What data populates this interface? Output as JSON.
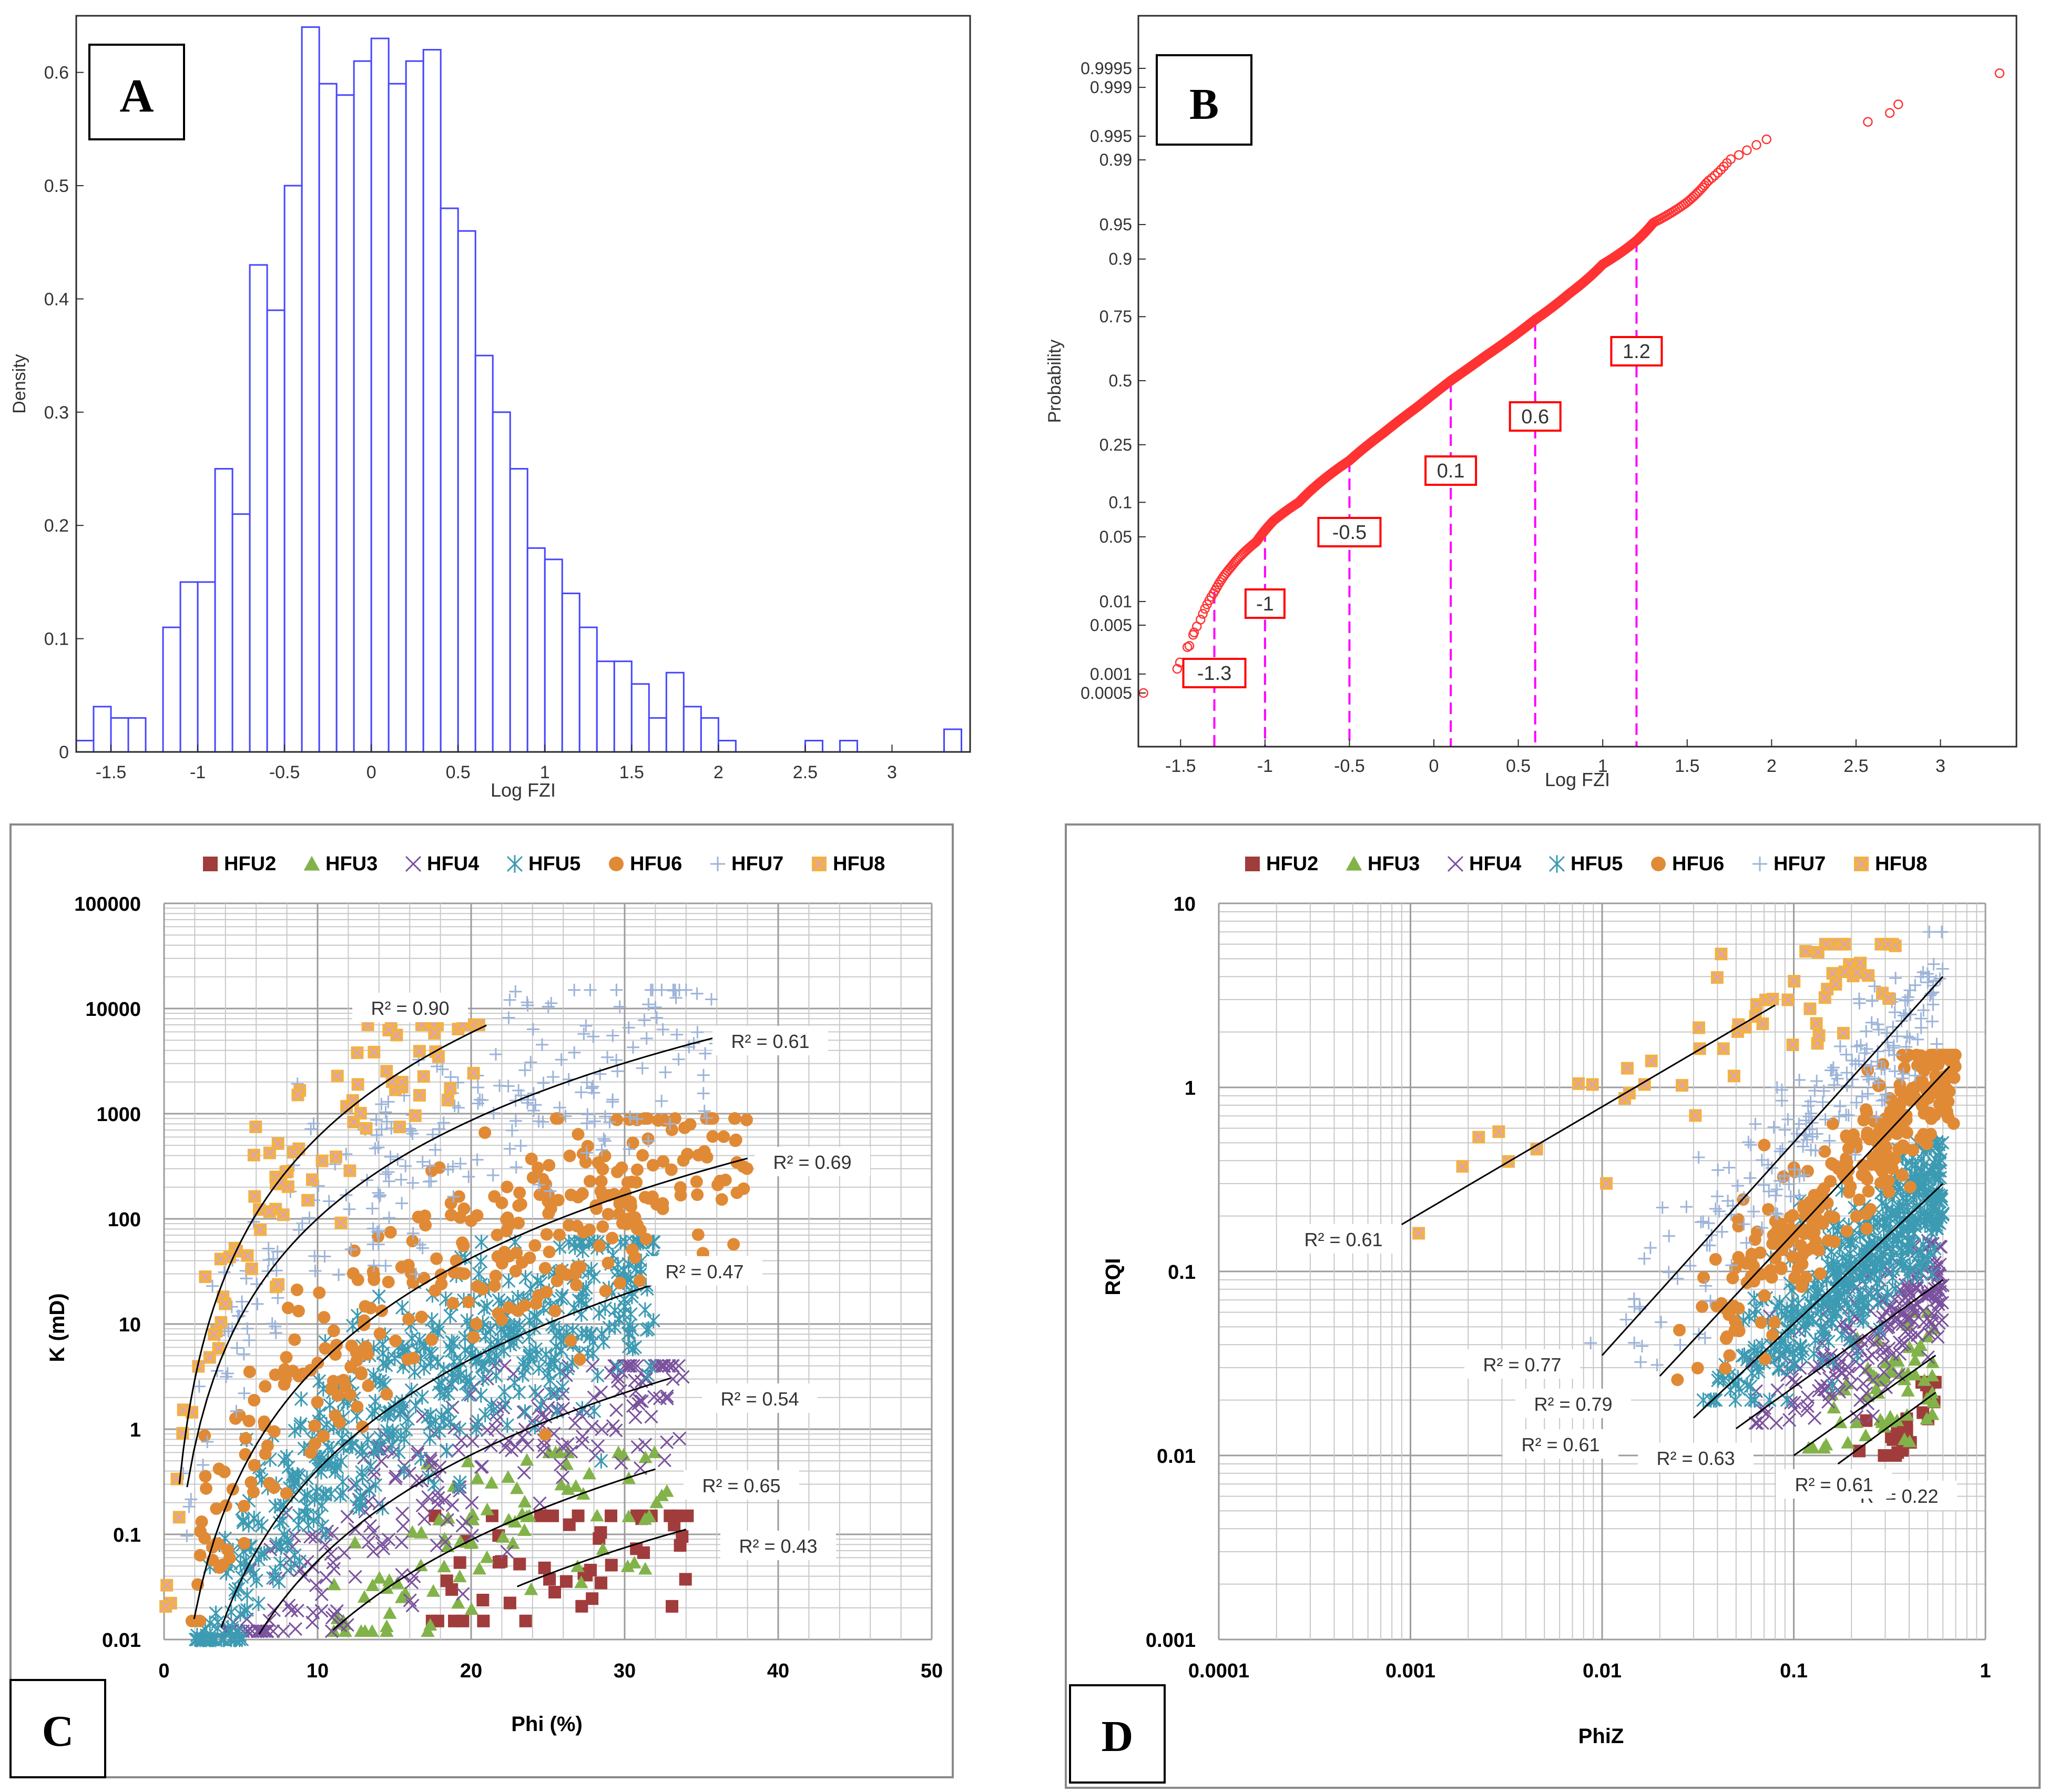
{
  "chart_data": [
    {
      "id": "A",
      "type": "bar",
      "subtype": "histogram",
      "panel_label": "A",
      "xlabel": "Log FZI",
      "ylabel": "Density",
      "xlim": [
        -1.7,
        3.45
      ],
      "ylim": [
        0,
        0.65
      ],
      "xticks": [
        "-1.5",
        "-1",
        "-0.5",
        "0",
        "0.5",
        "1",
        "1.5",
        "2",
        "2.5",
        "3"
      ],
      "yticks": [
        "0",
        "0.1",
        "0.2",
        "0.3",
        "0.4",
        "0.5",
        "0.6"
      ],
      "bin_width": 0.1,
      "bin_starts": [
        -1.7,
        -1.6,
        -1.5,
        -1.4,
        -1.3,
        -1.2,
        -1.1,
        -1.0,
        -0.9,
        -0.8,
        -0.7,
        -0.6,
        -0.5,
        -0.4,
        -0.3,
        -0.2,
        -0.1,
        0.0,
        0.1,
        0.2,
        0.3,
        0.4,
        0.5,
        0.6,
        0.7,
        0.8,
        0.9,
        1.0,
        1.1,
        1.2,
        1.3,
        1.4,
        1.5,
        1.6,
        1.7,
        1.8,
        1.9,
        2.0,
        2.5,
        2.7,
        3.3
      ],
      "values": [
        0.01,
        0.04,
        0.03,
        0.03,
        0.0,
        0.11,
        0.15,
        0.15,
        0.25,
        0.21,
        0.43,
        0.39,
        0.5,
        0.64,
        0.59,
        0.58,
        0.61,
        0.63,
        0.59,
        0.61,
        0.62,
        0.48,
        0.46,
        0.35,
        0.3,
        0.25,
        0.18,
        0.17,
        0.14,
        0.11,
        0.08,
        0.08,
        0.06,
        0.03,
        0.07,
        0.04,
        0.03,
        0.01,
        0.01,
        0.01,
        0.02
      ],
      "color": "#4646ff"
    },
    {
      "id": "B",
      "type": "scatter",
      "subtype": "normal probability plot",
      "panel_label": "B",
      "xlabel": "Log FZI",
      "ylabel": "Probability",
      "xlim": [
        -1.75,
        3.45
      ],
      "xticks": [
        "-1.5",
        "-1",
        "-0.5",
        "0",
        "0.5",
        "1",
        "1.5",
        "2",
        "2.5",
        "3"
      ],
      "ytick_labels": [
        "0.0005",
        "0.001",
        "0.005",
        "0.01",
        "0.05",
        "0.1",
        "0.25",
        "0.5",
        "0.75",
        "0.9",
        "0.95",
        "0.99",
        "0.995",
        "0.999",
        "0.9995"
      ],
      "ytick_probs": [
        0.0005,
        0.001,
        0.005,
        0.01,
        0.05,
        0.1,
        0.25,
        0.5,
        0.75,
        0.9,
        0.95,
        0.99,
        0.995,
        0.999,
        0.9995
      ],
      "curve_points": [
        [
          -1.72,
          0.0005
        ],
        [
          -1.52,
          0.0012
        ],
        [
          -1.45,
          0.0025
        ],
        [
          -1.38,
          0.006
        ],
        [
          -1.3,
          0.013
        ],
        [
          -1.2,
          0.025
        ],
        [
          -1.05,
          0.045
        ],
        [
          -0.95,
          0.07
        ],
        [
          -0.8,
          0.1
        ],
        [
          -0.5,
          0.2
        ],
        [
          -0.3,
          0.29
        ],
        [
          -0.1,
          0.39
        ],
        [
          0.1,
          0.5
        ],
        [
          0.3,
          0.6
        ],
        [
          0.6,
          0.74
        ],
        [
          0.8,
          0.82
        ],
        [
          1.0,
          0.89
        ],
        [
          1.2,
          0.93
        ],
        [
          1.3,
          0.952
        ],
        [
          1.5,
          0.97
        ],
        [
          1.62,
          0.982
        ],
        [
          1.75,
          0.99
        ],
        [
          1.88,
          0.993
        ],
        [
          1.97,
          0.9945
        ],
        [
          2.57,
          0.9968
        ],
        [
          2.7,
          0.9976
        ],
        [
          2.75,
          0.9982
        ],
        [
          3.35,
          0.9994
        ]
      ],
      "cutoffs": [
        -1.3,
        -1.0,
        -0.5,
        0.1,
        0.6,
        1.2
      ],
      "cutoff_labels": [
        "-1.3",
        "-1",
        "-0.5",
        "0.1",
        "0.6",
        "1.2"
      ],
      "marker_color": "#ff3333",
      "cutoff_color": "#ff00ff"
    },
    {
      "id": "C",
      "type": "scatter",
      "panel_label": "C",
      "xlabel": "Phi (%)",
      "ylabel": "K (mD)",
      "xlim": [
        0,
        50
      ],
      "ylim": [
        0.01,
        100000
      ],
      "yscale": "log",
      "xticks": [
        "0",
        "10",
        "20",
        "30",
        "40",
        "50"
      ],
      "yticks": [
        "0.01",
        "0.1",
        "1",
        "10",
        "100",
        "1000",
        "10000",
        "100000"
      ],
      "legend": [
        "HFU2",
        "HFU3",
        "HFU4",
        "HFU5",
        "HFU6",
        "HFU7",
        "HFU8"
      ],
      "series": [
        {
          "name": "HFU2",
          "color": "#a13c3c",
          "marker": "square",
          "phi_range": [
            17,
            35
          ],
          "k_range": [
            0.015,
            0.15
          ],
          "fit": {
            "a": 1.4e-06,
            "b": 3.2,
            "x_range": [
              23,
              34
            ]
          },
          "r2": "R² = 0.43"
        },
        {
          "name": "HFU3",
          "color": "#82b34a",
          "marker": "triangle",
          "phi_range": [
            11,
            33
          ],
          "k_range": [
            0.012,
            0.6
          ],
          "fit": {
            "a": 4.5e-06,
            "b": 3.3,
            "x_range": [
              11,
              32
            ]
          },
          "r2": "R² = 0.65"
        },
        {
          "name": "HFU4",
          "color": "#7b529e",
          "marker": "x",
          "phi_range": [
            4,
            34
          ],
          "k_range": [
            0.012,
            4
          ],
          "fit": {
            "a": 2.5e-05,
            "b": 3.35,
            "x_range": [
              5.5,
              33
            ]
          },
          "r2": "R² = 0.54"
        },
        {
          "name": "HFU5",
          "color": "#3c9bb3",
          "marker": "star",
          "phi_range": [
            2,
            32
          ],
          "k_range": [
            0.01,
            60
          ],
          "fit": {
            "a": 0.00013,
            "b": 3.5,
            "x_range": [
              3,
              32
            ]
          },
          "r2": "R² = 0.47"
        },
        {
          "name": "HFU6",
          "color": "#e08a36",
          "marker": "circle",
          "phi_range": [
            1.5,
            38
          ],
          "k_range": [
            0.015,
            900
          ],
          "fit": {
            "a": 0.0016,
            "b": 3.4,
            "x_range": [
              1.5,
              38
            ]
          },
          "r2": "R² = 0.69"
        },
        {
          "name": "HFU7",
          "color": "#9db4d9",
          "marker": "plus",
          "phi_range": [
            1,
            36
          ],
          "k_range": [
            0.02,
            15000
          ],
          "fit": {
            "a": 0.08,
            "b": 3.1,
            "x_range": [
              1.5,
              36
            ]
          },
          "r2": "R² = 0.61"
        },
        {
          "name": "HFU8",
          "color": "#f4b33c",
          "marker": "square-x",
          "phi_range": [
            0,
            21
          ],
          "k_range": [
            0.01,
            7000
          ],
          "fit": {
            "a": 0.3,
            "b": 3.3,
            "x_range": [
              1,
              21
            ]
          },
          "r2": "R² = 0.90"
        }
      ]
    },
    {
      "id": "D",
      "type": "scatter",
      "panel_label": "D",
      "xlabel": "PhiZ",
      "ylabel": "RQI",
      "xlim": [
        0.0001,
        1
      ],
      "ylim": [
        0.001,
        10
      ],
      "xscale": "log",
      "yscale": "log",
      "xticks": [
        "0.0001",
        "0.001",
        "0.01",
        "0.1",
        "1"
      ],
      "yticks": [
        "0.001",
        "0.01",
        "0.1",
        "1",
        "10"
      ],
      "legend": [
        "HFU2",
        "HFU3",
        "HFU4",
        "HFU5",
        "HFU6",
        "HFU7",
        "HFU8"
      ],
      "series": [
        {
          "name": "HFU2",
          "color": "#a13c3c",
          "marker": "square",
          "phiz_range": [
            0.2,
            0.55
          ],
          "rqi_range": [
            0.01,
            0.025
          ],
          "fit": {
            "x_range": [
              0.17,
              0.55
            ],
            "y_range": [
              0.009,
              0.022
            ]
          },
          "r2": "R² = 0.22"
        },
        {
          "name": "HFU3",
          "color": "#82b34a",
          "marker": "triangle",
          "phiz_range": [
            0.1,
            0.55
          ],
          "rqi_range": [
            0.011,
            0.06
          ],
          "fit": {
            "x_range": [
              0.1,
              0.55
            ],
            "y_range": [
              0.01,
              0.035
            ]
          },
          "r2": "R² = 0.61"
        },
        {
          "name": "HFU4",
          "color": "#7b529e",
          "marker": "x",
          "phiz_range": [
            0.05,
            0.6
          ],
          "rqi_range": [
            0.015,
            0.15
          ],
          "fit": {
            "x_range": [
              0.05,
              0.6
            ],
            "y_range": [
              0.014,
              0.09
            ]
          },
          "r2": "R² = 0.63"
        },
        {
          "name": "HFU5",
          "color": "#3c9bb3",
          "marker": "star",
          "phiz_range": [
            0.03,
            0.6
          ],
          "rqi_range": [
            0.02,
            0.5
          ],
          "fit": {
            "x_range": [
              0.03,
              0.6
            ],
            "y_range": [
              0.016,
              0.3
            ]
          },
          "r2": "R² = 0.61"
        },
        {
          "name": "HFU6",
          "color": "#e08a36",
          "marker": "circle",
          "phiz_range": [
            0.02,
            0.7
          ],
          "rqi_range": [
            0.025,
            1.5
          ],
          "fit": {
            "x_range": [
              0.02,
              0.65
            ],
            "y_range": [
              0.027,
              1.3
            ]
          },
          "r2": "R² = 0.79"
        },
        {
          "name": "HFU7",
          "color": "#9db4d9",
          "marker": "plus",
          "phiz_range": [
            0.007,
            0.6
          ],
          "rqi_range": [
            0.03,
            7
          ],
          "fit": {
            "x_range": [
              0.01,
              0.6
            ],
            "y_range": [
              0.035,
              4
            ]
          },
          "r2": "R² = 0.77"
        },
        {
          "name": "HFU8",
          "color": "#f4b33c",
          "marker": "square-x",
          "phiz_range": [
            0.0009,
            0.35
          ],
          "rqi_range": [
            0.07,
            6
          ],
          "fit": {
            "x_range": [
              0.0009,
              0.08
            ],
            "y_range": [
              0.18,
              2.8
            ]
          },
          "r2": "R² = 0.61"
        }
      ]
    }
  ]
}
